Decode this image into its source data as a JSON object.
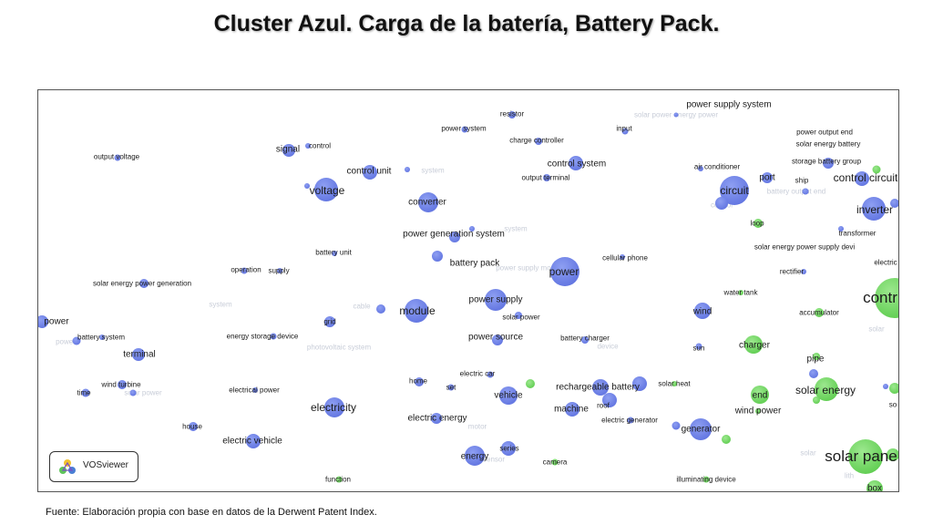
{
  "title": "Cluster Azul. Carga de la batería, Battery Pack.",
  "footer": "Fuente: Elaboración propia con base en datos de la Derwent Patent Index.",
  "logo_text": "VOSviewer",
  "colors": {
    "blue": "#5569dc",
    "green": "#4fc640"
  },
  "map": {
    "labels": {
      "resistor": "resistor",
      "power_supply_system": "power supply system",
      "power_system": "power system",
      "input": "input",
      "charge_controller": "charge controller",
      "power_output_end": "power output end",
      "solar_energy_battery": "solar energy battery",
      "signal": "signal",
      "control": "control",
      "output_voltage": "output voltage",
      "control_system": "control system",
      "storage_battery_group": "storage battery group",
      "control_unit": "control unit",
      "air_conditioner": "air conditioner",
      "output_terminal": "output terminal",
      "port": "port",
      "ship": "ship",
      "control_circuit": "control circuit",
      "voltage": "voltage",
      "circuit": "circuit",
      "converter": "converter",
      "inverter": "inverter",
      "loop": "loop",
      "power_generation_system": "power generation system",
      "transformer": "transformer",
      "battery_unit": "battery unit",
      "solar_energy_power_supply_devi": "solar energy power supply devi",
      "cellular_phone": "cellular phone",
      "battery_pack": "battery pack",
      "electric": "electric",
      "operation": "operation",
      "supply": "supply",
      "power": "power",
      "rectifier": "rectifier",
      "solar_energy_power_generation": "solar energy power generation",
      "water_tank": "water tank",
      "power_supply": "power supply",
      "contr": "contr",
      "module": "module",
      "wind": "wind",
      "accumulator": "accumulator",
      "left_power": "power",
      "solar_power": "solar power",
      "grid": "grid",
      "battery_system": "battery system",
      "energy_storage_device": "energy storage device",
      "power_source": "power source",
      "battery_charger": "battery charger",
      "charger": "charger",
      "terminal": "terminal",
      "sun": "sun",
      "pipe": "pipe",
      "electric_car": "electric car",
      "wind_turbine": "wind turbine",
      "home": "home",
      "solar_heat": "solar heat",
      "time": "time",
      "electrical_power": "electrical power",
      "set": "set",
      "rechargeable_battery": "rechargeable battery",
      "solar_energy": "solar energy",
      "vehicle": "vehicle",
      "end": "end",
      "electricity": "electricity",
      "roof": "roof",
      "wind_power": "wind power",
      "so": "so",
      "machine": "machine",
      "electric_energy": "electric energy",
      "electric_generator": "electric generator",
      "house": "house",
      "generator": "generator",
      "electric_vehicle": "electric vehicle",
      "series": "series",
      "energy": "energy",
      "solar_pane": "solar pane",
      "camera": "camera",
      "function": "function",
      "illuminating_device": "illuminating device",
      "box": "box"
    }
  }
}
